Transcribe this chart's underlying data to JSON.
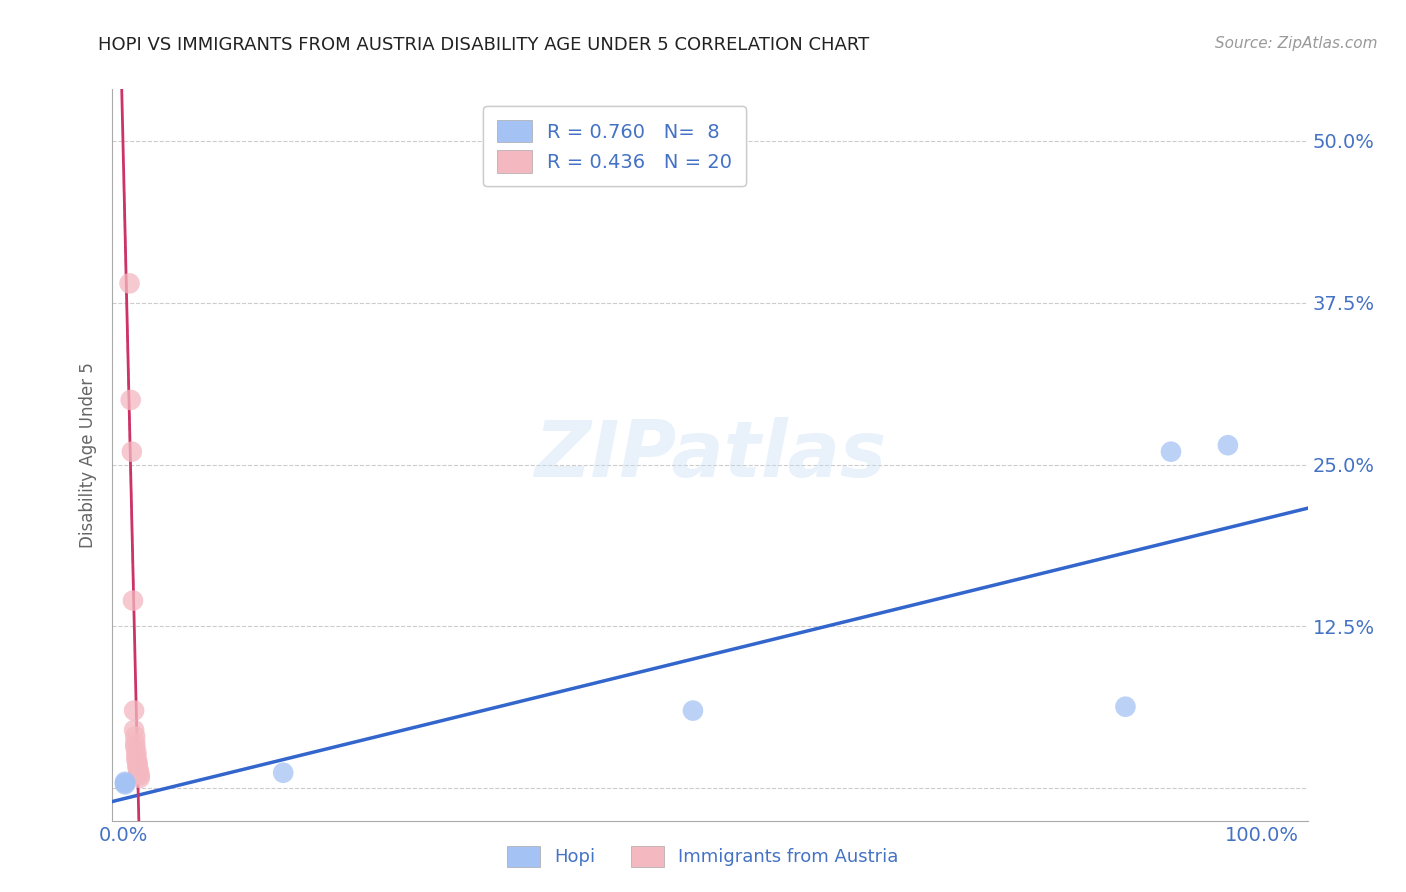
{
  "title": "HOPI VS IMMIGRANTS FROM AUSTRIA DISABILITY AGE UNDER 5 CORRELATION CHART",
  "source_text": "Source: ZipAtlas.com",
  "ylabel": "Disability Age Under 5",
  "watermark": "ZIPatlas",
  "hopi_R": 0.76,
  "hopi_N": 8,
  "austria_R": 0.436,
  "austria_N": 20,
  "hopi_color": "#a4c2f4",
  "austria_color": "#f4b8c1",
  "hopi_line_color": "#3366cc",
  "austria_line_color": "#cc3366",
  "hopi_scatter": [
    [
      0.001,
      0.003
    ],
    [
      0.001,
      0.004
    ],
    [
      0.001,
      0.005
    ],
    [
      0.14,
      0.012
    ],
    [
      0.5,
      0.06
    ],
    [
      0.88,
      0.063
    ],
    [
      0.92,
      0.26
    ],
    [
      0.97,
      0.265
    ]
  ],
  "austria_scatter": [
    [
      0.005,
      0.39
    ],
    [
      0.006,
      0.3
    ],
    [
      0.007,
      0.26
    ],
    [
      0.008,
      0.145
    ],
    [
      0.009,
      0.06
    ],
    [
      0.009,
      0.045
    ],
    [
      0.01,
      0.04
    ],
    [
      0.01,
      0.035
    ],
    [
      0.01,
      0.032
    ],
    [
      0.011,
      0.028
    ],
    [
      0.011,
      0.025
    ],
    [
      0.011,
      0.022
    ],
    [
      0.012,
      0.02
    ],
    [
      0.012,
      0.018
    ],
    [
      0.012,
      0.016
    ],
    [
      0.013,
      0.014
    ],
    [
      0.013,
      0.013
    ],
    [
      0.013,
      0.011
    ],
    [
      0.014,
      0.01
    ],
    [
      0.014,
      0.008
    ]
  ],
  "hopi_line": [
    [
      0.0,
      -0.012
    ],
    [
      1.04,
      0.27
    ]
  ],
  "austria_line_solid": [
    [
      0.0,
      0.005
    ],
    [
      0.014,
      0.15
    ]
  ],
  "austria_line_dashed": [
    [
      0.0,
      -0.3
    ],
    [
      0.014,
      0.15
    ]
  ],
  "xlim": [
    -0.01,
    1.04
  ],
  "ylim": [
    -0.025,
    0.54
  ],
  "xticks": [
    0.0,
    1.0
  ],
  "yticks": [
    0.0,
    0.125,
    0.25,
    0.375,
    0.5
  ],
  "xticklabels": [
    "0.0%",
    "100.0%"
  ],
  "yticklabels_right": [
    "",
    "12.5%",
    "25.0%",
    "37.5%",
    "50.0%"
  ],
  "background_color": "#ffffff",
  "grid_color": "#cccccc",
  "tick_label_color": "#4472c4",
  "title_color": "#222222",
  "legend_label1": "Hopi",
  "legend_label2": "Immigrants from Austria"
}
